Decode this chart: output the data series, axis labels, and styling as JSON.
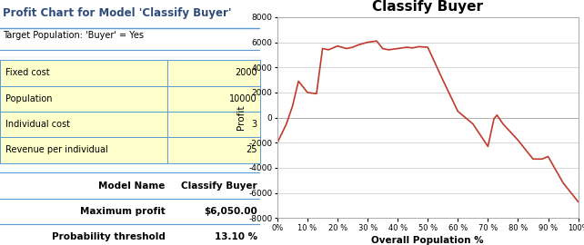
{
  "title_main": "Profit Chart for Model 'Classify Buyer'",
  "subtitle": "Target Population: 'Buyer' = Yes",
  "chart_title": "Classify Buyer",
  "xlabel": "Overall Population %",
  "ylabel": "Profit",
  "table_labels": [
    "Fixed cost",
    "Population",
    "Individual cost",
    "Revenue per individual"
  ],
  "table_values": [
    "2000",
    "10000",
    "3",
    "25"
  ],
  "info_labels": [
    "Model Name",
    "Maximum profit",
    "Probability threshold"
  ],
  "info_values": [
    "Classify Buyer",
    "$6,050.00",
    "13.10 %"
  ],
  "x_data": [
    0,
    3,
    5,
    7,
    10,
    13,
    15,
    17,
    20,
    23,
    25,
    27,
    30,
    33,
    35,
    37,
    40,
    43,
    45,
    47,
    50,
    55,
    60,
    65,
    70,
    72,
    73,
    75,
    80,
    85,
    88,
    90,
    95,
    100
  ],
  "y_data": [
    -2000,
    -500,
    900,
    2900,
    2000,
    1900,
    5500,
    5400,
    5700,
    5500,
    5600,
    5800,
    6000,
    6100,
    5500,
    5400,
    5500,
    5600,
    5550,
    5650,
    5600,
    3000,
    500,
    -500,
    -2300,
    -100,
    200,
    -500,
    -1800,
    -3300,
    -3300,
    -3100,
    -5200,
    -6700
  ],
  "line_color": "#c0392b",
  "bg_color": "#ffffff",
  "table_bg": "#ffffcc",
  "table_border": "#5b9bd5",
  "header_color": "#2e4b7a",
  "ylim": [
    -8000,
    8000
  ],
  "yticks": [
    -8000,
    -6000,
    -4000,
    -2000,
    0,
    2000,
    4000,
    6000,
    8000
  ],
  "xtick_labels": [
    "0%",
    "10 %",
    "20 %",
    "30 %",
    "40 %",
    "50 %",
    "60 %",
    "70 %",
    "80 %",
    "90 %",
    "100%"
  ],
  "xtick_vals": [
    0,
    10,
    20,
    30,
    40,
    50,
    60,
    70,
    80,
    90,
    100
  ],
  "grid_color": "#d0d0d0",
  "chart_border": "#aaaaaa"
}
